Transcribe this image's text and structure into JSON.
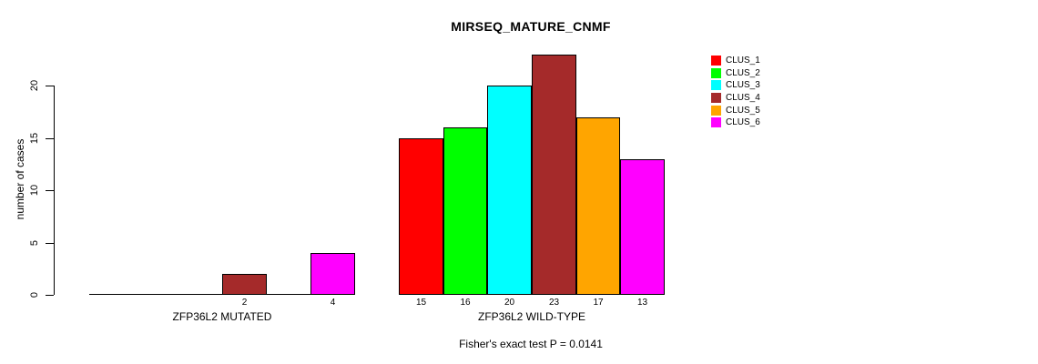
{
  "chart_data": {
    "type": "bar",
    "title": "MIRSEQ_MATURE_CNMF",
    "ylabel": "number of cases",
    "ylim": [
      0,
      20
    ],
    "yticks": [
      0,
      5,
      10,
      15,
      20
    ],
    "grid": false,
    "legend_position": "right",
    "series": [
      "CLUS_1",
      "CLUS_2",
      "CLUS_3",
      "CLUS_4",
      "CLUS_5",
      "CLUS_6"
    ],
    "series_colors": [
      "#ff0000",
      "#00ff00",
      "#00ffff",
      "#a52a2a",
      "#ffa500",
      "#ff00ff"
    ],
    "groups": [
      {
        "label": "ZFP36L2 MUTATED",
        "values": [
          0,
          0,
          0,
          2,
          0,
          4
        ]
      },
      {
        "label": "ZFP36L2 WILD-TYPE",
        "values": [
          15,
          16,
          20,
          23,
          17,
          13
        ]
      }
    ],
    "bar_value_labels_shown_for_nonzero_only": true,
    "annotation": "Fisher's exact test P = 0.0141"
  },
  "legend": {
    "items": [
      {
        "label": "CLUS_1",
        "color": "#ff0000"
      },
      {
        "label": "CLUS_2",
        "color": "#00ff00"
      },
      {
        "label": "CLUS_3",
        "color": "#00ffff"
      },
      {
        "label": "CLUS_4",
        "color": "#a52a2a"
      },
      {
        "label": "CLUS_5",
        "color": "#ffa500"
      },
      {
        "label": "CLUS_6",
        "color": "#ff00ff"
      }
    ]
  }
}
